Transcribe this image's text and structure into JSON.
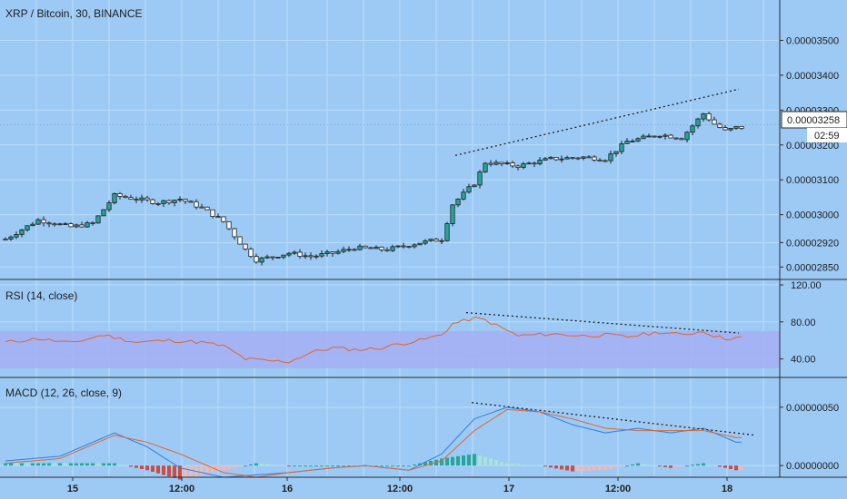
{
  "header": {
    "symbol_title": "XRP / Bitcoin, 30, BINANCE",
    "rsi_title": "RSI (14, close)",
    "macd_title": "MACD (12, 26, close, 9)"
  },
  "price_badge": {
    "price": "0.00003258",
    "countdown": "02:59"
  },
  "colors": {
    "background": "#9dcaf5",
    "grid": "#bcdcfa",
    "up": "#26a69a",
    "down": "#ffffff",
    "rsi_line": "#e0672e",
    "rsi_band": "#a6aff2",
    "macd_line": "#2e7fe0",
    "signal_line": "#e0672e",
    "hist_up_strong": "#26a69a",
    "hist_up_weak": "#a6e3d8",
    "hist_down_strong": "#d04a3e",
    "hist_down_weak": "#f4b8b4"
  },
  "chart_data": [
    {
      "type": "candlestick",
      "title": "XRP / Bitcoin, 30, BINANCE",
      "ylim": [
        2.83e-05,
        3.6e-05
      ],
      "y_ticks": [
        "0.00002850",
        "0.00002920",
        "0.00003000",
        "0.00003100",
        "0.00003200",
        "0.00003300",
        "0.00003400",
        "0.00003500"
      ],
      "x_ticks": [
        "15",
        "12:00",
        "16",
        "12:00",
        "17",
        "12:00",
        "18"
      ],
      "close_path": [
        [
          0,
          2.93e-05
        ],
        [
          6,
          2.985e-05
        ],
        [
          12,
          2.965e-05
        ],
        [
          16,
          2.975e-05
        ],
        [
          20,
          3.055e-05
        ],
        [
          24,
          3.045e-05
        ],
        [
          28,
          3.035e-05
        ],
        [
          32,
          3.045e-05
        ],
        [
          36,
          3.02e-05
        ],
        [
          40,
          2.98e-05
        ],
        [
          44,
          2.9e-05
        ],
        [
          46,
          2.87e-05
        ],
        [
          52,
          2.89e-05
        ],
        [
          56,
          2.88e-05
        ],
        [
          60,
          2.89e-05
        ],
        [
          64,
          2.905e-05
        ],
        [
          70,
          2.9e-05
        ],
        [
          76,
          2.92e-05
        ],
        [
          80,
          2.93e-05
        ],
        [
          82,
          3.03e-05
        ],
        [
          86,
          3.09e-05
        ],
        [
          88,
          3.15e-05
        ],
        [
          94,
          3.14e-05
        ],
        [
          100,
          3.16e-05
        ],
        [
          106,
          3.165e-05
        ],
        [
          110,
          3.16e-05
        ],
        [
          114,
          3.21e-05
        ],
        [
          120,
          3.23e-05
        ],
        [
          124,
          3.22e-05
        ],
        [
          128,
          3.29e-05
        ],
        [
          130,
          3.26e-05
        ],
        [
          132,
          3.24e-05
        ],
        [
          134,
          3.25e-05
        ]
      ],
      "trendline": {
        "label": "",
        "from": [
          83,
          3.17e-05
        ],
        "to": [
          135,
          3.36e-05
        ]
      },
      "last_price": 3.258e-05
    },
    {
      "type": "line",
      "title": "RSI (14, close)",
      "ylim": [
        20,
        120
      ],
      "y_ticks": [
        "40.00",
        "80.00",
        "120.00"
      ],
      "band": [
        30,
        70
      ],
      "values_path": [
        [
          0,
          58
        ],
        [
          6,
          62
        ],
        [
          12,
          57
        ],
        [
          18,
          66
        ],
        [
          24,
          58
        ],
        [
          30,
          60
        ],
        [
          36,
          58
        ],
        [
          40,
          54
        ],
        [
          44,
          40
        ],
        [
          48,
          38
        ],
        [
          52,
          37
        ],
        [
          56,
          47
        ],
        [
          60,
          52
        ],
        [
          64,
          50
        ],
        [
          68,
          51
        ],
        [
          72,
          56
        ],
        [
          76,
          60
        ],
        [
          80,
          66
        ],
        [
          82,
          78
        ],
        [
          86,
          84
        ],
        [
          88,
          82
        ],
        [
          94,
          65
        ],
        [
          100,
          67
        ],
        [
          106,
          65
        ],
        [
          110,
          66
        ],
        [
          114,
          64
        ],
        [
          120,
          69
        ],
        [
          124,
          66
        ],
        [
          128,
          70
        ],
        [
          130,
          65
        ],
        [
          132,
          62
        ],
        [
          134,
          63
        ]
      ],
      "divergence_line": {
        "from": [
          85,
          90
        ],
        "to": [
          135,
          68
        ]
      }
    },
    {
      "type": "bar",
      "title": "MACD (12, 26, close, 9)",
      "ylim": [
        -1e-07,
        7.4e-07
      ],
      "y_ticks": [
        "0.00000000",
        "0.00000050"
      ],
      "macd_path": [
        [
          0,
          4e-08
        ],
        [
          10,
          8e-08
        ],
        [
          20,
          2.8e-07
        ],
        [
          26,
          1.6e-07
        ],
        [
          32,
          -2e-08
        ],
        [
          40,
          -1e-07
        ],
        [
          46,
          -8e-08
        ],
        [
          52,
          -6e-08
        ],
        [
          60,
          -2e-08
        ],
        [
          66,
          0.0
        ],
        [
          74,
          -4e-08
        ],
        [
          80,
          1e-07
        ],
        [
          86,
          4e-07
        ],
        [
          92,
          5e-07
        ],
        [
          98,
          4.6e-07
        ],
        [
          104,
          3.5e-07
        ],
        [
          110,
          2.8e-07
        ],
        [
          116,
          3.2e-07
        ],
        [
          122,
          2.8e-07
        ],
        [
          128,
          3.2e-07
        ],
        [
          134,
          2e-07
        ]
      ],
      "signal_path": [
        [
          0,
          2e-08
        ],
        [
          10,
          6e-08
        ],
        [
          20,
          2.6e-07
        ],
        [
          26,
          2e-07
        ],
        [
          32,
          1e-07
        ],
        [
          40,
          -6e-08
        ],
        [
          46,
          -1e-07
        ],
        [
          52,
          -6e-08
        ],
        [
          60,
          -2e-08
        ],
        [
          66,
          0.0
        ],
        [
          74,
          -4e-08
        ],
        [
          80,
          4e-08
        ],
        [
          86,
          3e-07
        ],
        [
          92,
          4.8e-07
        ],
        [
          98,
          4.6e-07
        ],
        [
          104,
          4e-07
        ],
        [
          110,
          3.2e-07
        ],
        [
          116,
          3e-07
        ],
        [
          122,
          3e-07
        ],
        [
          128,
          3e-07
        ],
        [
          134,
          2.4e-07
        ]
      ],
      "divergence_line": {
        "from": [
          86,
          5.4e-07
        ],
        "to": [
          138,
          2.6e-07
        ]
      }
    }
  ]
}
